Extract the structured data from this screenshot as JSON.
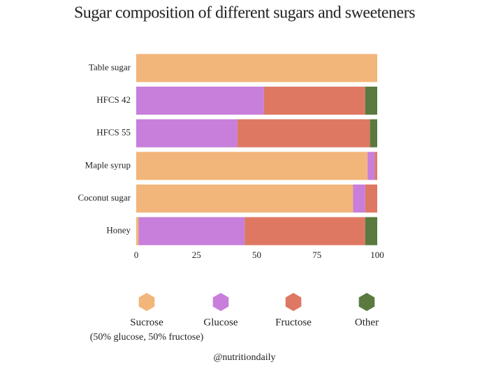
{
  "chart_data": {
    "type": "stacked-bar-horizontal",
    "title": "Sugar composition of different sugars and sweeteners",
    "categories": [
      "Table sugar",
      "HFCS 42",
      "HFCS 55",
      "Maple syrup",
      "Coconut sugar",
      "Honey"
    ],
    "series": [
      {
        "name": "Sucrose",
        "note": "(50% glucose, 50% fructose)",
        "color": "#f2b57a",
        "values": [
          100,
          0,
          0,
          96,
          90,
          1
        ]
      },
      {
        "name": "Glucose",
        "color": "#c77fdb",
        "values": [
          0,
          53,
          42,
          3,
          5,
          44
        ]
      },
      {
        "name": "Fructose",
        "color": "#de7862",
        "values": [
          0,
          42,
          55,
          1,
          5,
          50
        ]
      },
      {
        "name": "Other",
        "color": "#5a7a3f",
        "values": [
          0,
          5,
          3,
          0,
          0,
          5
        ]
      }
    ],
    "xlim": [
      0,
      100
    ],
    "xticks": [
      0,
      25,
      50,
      75,
      100
    ],
    "grid": false,
    "footer": "@nutritiondaily"
  }
}
